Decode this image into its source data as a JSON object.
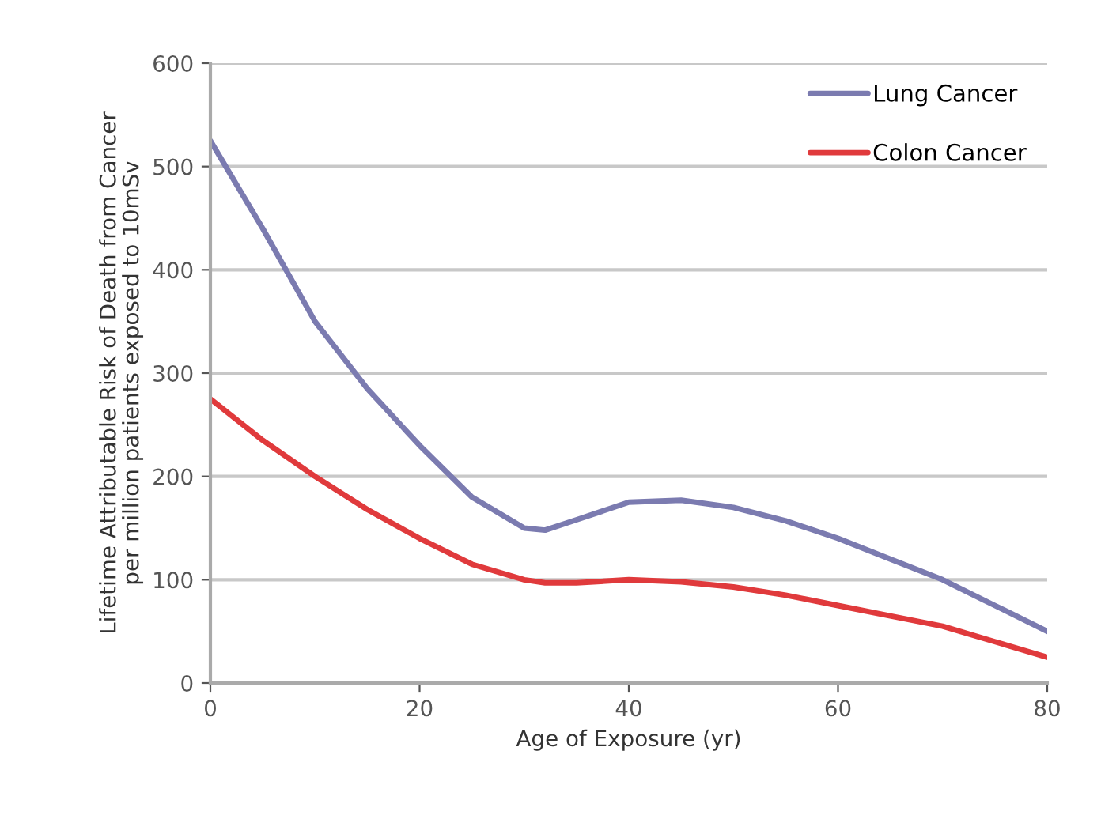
{
  "chart_data": {
    "type": "line",
    "xlabel": "Age of Exposure (yr)",
    "ylabel": "Lifetime Attributable Risk of Death from Cancer\nper million patients exposed to 10mSv",
    "x": [
      0,
      5,
      10,
      15,
      20,
      25,
      30,
      32,
      35,
      40,
      45,
      50,
      55,
      60,
      65,
      70,
      75,
      80
    ],
    "series": [
      {
        "name": "Lung Cancer",
        "color": "#7b7bb0",
        "values": [
          525,
          440,
          350,
          285,
          230,
          180,
          150,
          148,
          158,
          175,
          177,
          170,
          157,
          140,
          120,
          100,
          75,
          50
        ]
      },
      {
        "name": "Colon Cancer",
        "color": "#e03a3c",
        "values": [
          275,
          235,
          200,
          168,
          140,
          115,
          100,
          97,
          97,
          100,
          98,
          93,
          85,
          75,
          65,
          55,
          40,
          25
        ]
      }
    ],
    "xlim": [
      0,
      80
    ],
    "xticks": [
      0,
      20,
      40,
      60,
      80
    ],
    "ylim": [
      0,
      600
    ],
    "yticks": [
      0,
      100,
      200,
      300,
      400,
      500,
      600
    ],
    "grid": "y",
    "legend": "top right",
    "marker": "none",
    "line_style": "solid"
  }
}
